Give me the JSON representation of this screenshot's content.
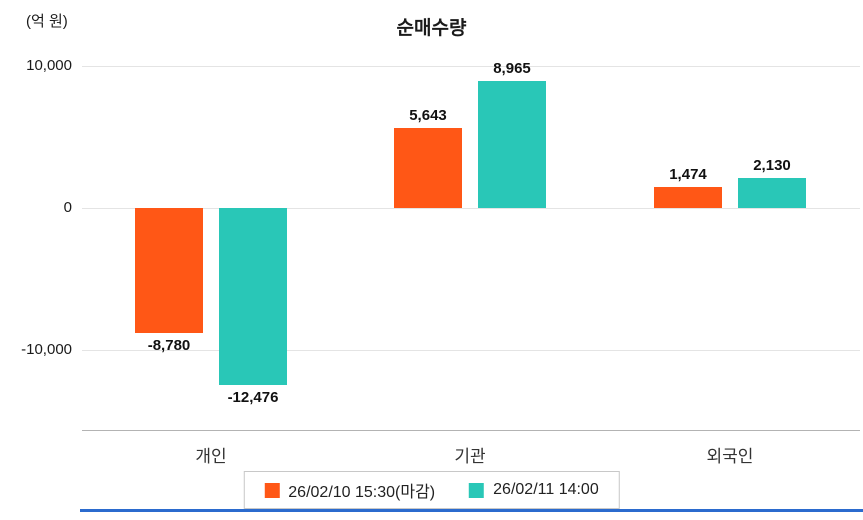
{
  "chart_data": {
    "type": "bar",
    "title": "순매수량",
    "unit_label": "(억 원)",
    "categories": [
      "개인",
      "기관",
      "외국인"
    ],
    "series": [
      {
        "name": "26/02/10 15:30(마감)",
        "color": "#ff5716",
        "values": [
          -8780,
          5643,
          1474
        ],
        "labels": [
          "-8,780",
          "5,643",
          "1,474"
        ]
      },
      {
        "name": "26/02/11 14:00",
        "color": "#29c7b7",
        "values": [
          -12476,
          8965,
          2130
        ],
        "labels": [
          "-12,476",
          "8,965",
          "2,130"
        ]
      }
    ],
    "yticks": [
      {
        "value": 10000,
        "label": "10,000"
      },
      {
        "value": 0,
        "label": "0"
      },
      {
        "value": -10000,
        "label": "-10,000"
      }
    ],
    "ylim": [
      -15600,
      10000
    ],
    "grid": "horizontal",
    "legend_position": "bottom-center",
    "accent_line_color": "#2b6bce"
  }
}
